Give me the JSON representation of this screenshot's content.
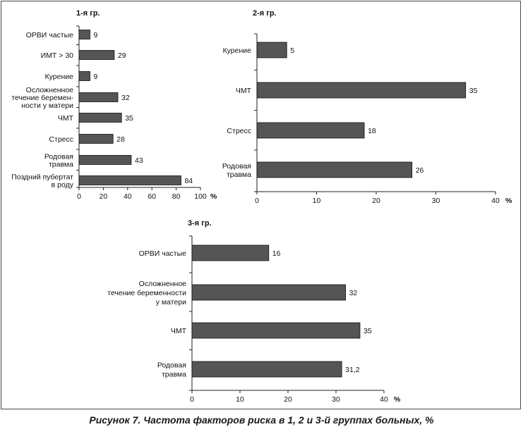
{
  "caption": "Рисунок 7. Частота факторов риска в 1, 2 и 3-й группах больных, %",
  "colors": {
    "bar": "#555555",
    "axis": "#222222",
    "frame": "#4a4a4a"
  },
  "chart_data": [
    {
      "type": "bar",
      "orientation": "horizontal",
      "title": "1-я гр.",
      "unit": "%",
      "categories": [
        [
          "ОРВИ частые"
        ],
        [
          "ИМТ > 30"
        ],
        [
          "Курение"
        ],
        [
          "Осложненное",
          "течение беремен-",
          "ности у матери"
        ],
        [
          "ЧМТ"
        ],
        [
          "Стресс"
        ],
        [
          "Родовая",
          "травма"
        ],
        [
          "Поздний пубертат",
          "в роду"
        ]
      ],
      "values": [
        9,
        29,
        9,
        32,
        35,
        28,
        43,
        84
      ],
      "value_labels": [
        "9",
        "29",
        "9",
        "32",
        "35",
        "28",
        "43",
        "84"
      ],
      "xlim": [
        0,
        100
      ],
      "ticks": [
        0,
        20,
        40,
        60,
        80,
        100
      ],
      "tick_labels": [
        "0",
        "20",
        "40",
        "60",
        "80",
        "100"
      ],
      "grid": false
    },
    {
      "type": "bar",
      "orientation": "horizontal",
      "title": "2-я гр.",
      "unit": "%",
      "categories": [
        [
          "Курение"
        ],
        [
          "ЧМТ"
        ],
        [
          "Стресс"
        ],
        [
          "Родовая",
          "травма"
        ]
      ],
      "values": [
        5,
        35,
        18,
        26
      ],
      "value_labels": [
        "5",
        "35",
        "18",
        "26"
      ],
      "xlim": [
        0,
        40
      ],
      "ticks": [
        0,
        10,
        20,
        30,
        40
      ],
      "tick_labels": [
        "0",
        "10",
        "20",
        "30",
        "40"
      ],
      "grid": false
    },
    {
      "type": "bar",
      "orientation": "horizontal",
      "title": "3-я гр.",
      "unit": "%",
      "categories": [
        [
          "ОРВИ частые"
        ],
        [
          "Осложненное",
          "течение беременности",
          "у матери"
        ],
        [
          "ЧМТ"
        ],
        [
          "Родовая",
          "травма"
        ]
      ],
      "values": [
        16,
        32,
        35,
        31.2
      ],
      "value_labels": [
        "16",
        "32",
        "35",
        "31,2"
      ],
      "xlim": [
        0,
        40
      ],
      "ticks": [
        0,
        10,
        20,
        30,
        40
      ],
      "tick_labels": [
        "0",
        "10",
        "20",
        "30",
        "40"
      ],
      "grid": false
    }
  ]
}
